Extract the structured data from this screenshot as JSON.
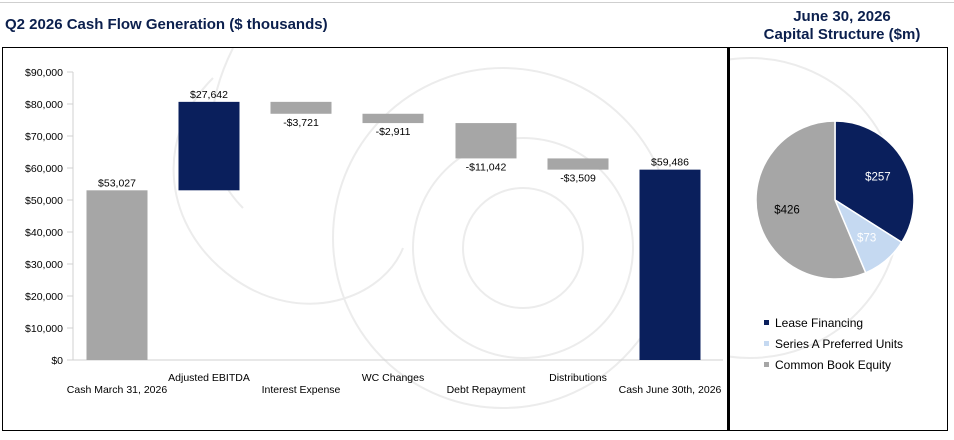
{
  "header": {
    "left_title": "Q2 2026 Cash Flow Generation ($ thousands)",
    "right_title_line1": "June 30, 2026",
    "right_title_line2": "Capital Structure ($m)"
  },
  "colors": {
    "navy": "#0a1f5c",
    "gray": "#a6a6a6",
    "light_blue": "#c5d9f1",
    "title": "#0b1f4d"
  },
  "chart_data": [
    {
      "type": "bar",
      "subtype": "waterfall",
      "ylim": [
        0,
        90000
      ],
      "ytick_step": 10000,
      "ytick_labels": [
        "$0",
        "$10,000",
        "$20,000",
        "$30,000",
        "$40,000",
        "$50,000",
        "$60,000",
        "$70,000",
        "$80,000",
        "$90,000"
      ],
      "categories": [
        "Cash March 31, 2026",
        "Adjusted EBITDA",
        "Interest Expense",
        "WC Changes",
        "Debt Repayment",
        "Distributions",
        "Cash June 30th, 2026"
      ],
      "bars": [
        {
          "category": "Cash March 31, 2026",
          "low": 0,
          "high": 53027,
          "label": "$53,027",
          "color": "gray",
          "kind": "total"
        },
        {
          "category": "Adjusted EBITDA",
          "low": 53027,
          "high": 80669,
          "label": "$27,642",
          "color": "navy",
          "kind": "increase"
        },
        {
          "category": "Interest Expense",
          "low": 76948,
          "high": 80669,
          "label": "-$3,721",
          "color": "gray",
          "kind": "decrease"
        },
        {
          "category": "WC Changes",
          "low": 74037,
          "high": 76948,
          "label": "-$2,911",
          "color": "gray",
          "kind": "decrease"
        },
        {
          "category": "Debt Repayment",
          "low": 62995,
          "high": 74037,
          "label": "-$11,042",
          "color": "gray",
          "kind": "decrease"
        },
        {
          "category": "Distributions",
          "low": 59486,
          "high": 62995,
          "label": "-$3,509",
          "color": "gray",
          "kind": "decrease"
        },
        {
          "category": "Cash June 30th, 2026",
          "low": 0,
          "high": 59486,
          "label": "$59,486",
          "color": "navy",
          "kind": "total"
        }
      ],
      "grid": false
    },
    {
      "type": "pie",
      "slices": [
        {
          "name": "Lease Financing",
          "value": 257,
          "label": "$257",
          "color": "navy"
        },
        {
          "name": "Series A Preferred Units",
          "value": 73,
          "label": "$73",
          "color": "light_blue"
        },
        {
          "name": "Common Book Equity",
          "value": 426,
          "label": "$426",
          "color": "gray"
        }
      ],
      "legend_position": "bottom"
    }
  ]
}
